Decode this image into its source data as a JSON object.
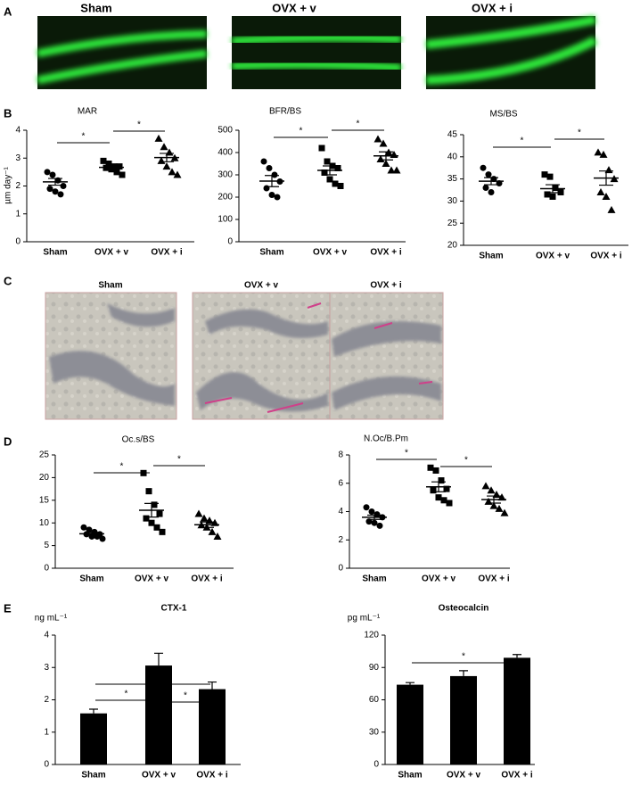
{
  "panel_labels": [
    "A",
    "B",
    "C",
    "D",
    "E"
  ],
  "fluorescence_images": {
    "labels": [
      "Sham",
      "OVX + v",
      "OVX + i"
    ]
  },
  "trap_images": {
    "labels": [
      "Sham",
      "OVX + v",
      "OVX + i"
    ]
  },
  "chart_data": [
    {
      "type": "dot",
      "title": "MAR",
      "ylabel": "µm day⁻¹",
      "categories": [
        "Sham",
        "OVX + v",
        "OVX + i"
      ],
      "markers": [
        "circle",
        "square",
        "triangle"
      ],
      "color": "#000000",
      "points": [
        [
          2.5,
          2.4,
          2.2,
          2.0,
          1.9,
          1.8,
          1.7
        ],
        [
          2.9,
          2.8,
          2.7,
          2.7,
          2.65,
          2.6,
          2.5,
          2.4
        ],
        [
          3.7,
          3.4,
          3.2,
          3.0,
          2.9,
          2.7,
          2.5,
          2.4
        ]
      ],
      "means": [
        2.15,
        2.67,
        3.02
      ],
      "errors": [
        0.12,
        0.06,
        0.15
      ],
      "ylim": [
        0,
        4
      ],
      "yticks": [
        0,
        1,
        2,
        3,
        4
      ],
      "significance": [
        {
          "label": "*",
          "between": [
            "Sham",
            "OVX + v"
          ]
        },
        {
          "label": "*",
          "between": [
            "OVX + v",
            "OVX + i"
          ]
        }
      ]
    },
    {
      "type": "dot",
      "title": "BFR/BS",
      "categories": [
        "Sham",
        "OVX + v",
        "OVX + i"
      ],
      "markers": [
        "circle",
        "square",
        "triangle"
      ],
      "color": "#000000",
      "points": [
        [
          360,
          330,
          300,
          270,
          240,
          210,
          200
        ],
        [
          420,
          360,
          340,
          330,
          310,
          280,
          260,
          250
        ],
        [
          460,
          440,
          400,
          390,
          370,
          350,
          320,
          320
        ]
      ],
      "means": [
        272,
        320,
        385
      ],
      "errors": [
        25,
        20,
        18
      ],
      "ylim": [
        0,
        500
      ],
      "yticks": [
        0,
        100,
        200,
        300,
        400,
        500
      ],
      "significance": [
        {
          "label": "*",
          "between": [
            "Sham",
            "OVX + v"
          ]
        },
        {
          "label": "*",
          "between": [
            "OVX + v",
            "OVX + i"
          ]
        }
      ]
    },
    {
      "type": "dot",
      "title": "MS/BS",
      "categories": [
        "Sham",
        "OVX + v",
        "OVX + i"
      ],
      "markers": [
        "circle",
        "square",
        "triangle"
      ],
      "color": "#000000",
      "points": [
        [
          37.5,
          36,
          35,
          34,
          33,
          32
        ],
        [
          36,
          35.5,
          33,
          32,
          31.5,
          31
        ],
        [
          41,
          40.5,
          37,
          35,
          32,
          31,
          28
        ]
      ],
      "means": [
        34.5,
        32.8,
        35.2
      ],
      "errors": [
        0.8,
        0.9,
        1.6
      ],
      "ylim": [
        20,
        45
      ],
      "yticks": [
        20,
        25,
        30,
        35,
        40,
        45
      ],
      "significance": [
        {
          "label": "*",
          "between": [
            "Sham",
            "OVX + v"
          ]
        },
        {
          "label": "*",
          "between": [
            "OVX + v",
            "OVX + i"
          ]
        }
      ]
    },
    {
      "type": "dot",
      "title": "Oc.s/BS",
      "categories": [
        "Sham",
        "OVX + v",
        "OVX + i"
      ],
      "markers": [
        "circle",
        "square",
        "triangle"
      ],
      "color": "#000000",
      "points": [
        [
          9,
          8.5,
          8,
          7.5,
          7.5,
          7,
          7,
          6.5
        ],
        [
          21,
          17,
          14,
          12,
          11,
          10,
          9,
          8
        ],
        [
          12,
          11,
          10.5,
          10,
          9.5,
          9,
          8,
          7
        ]
      ],
      "means": [
        7.6,
        12.8,
        9.6
      ],
      "errors": [
        0.3,
        1.5,
        0.6
      ],
      "ylim": [
        0,
        25
      ],
      "yticks": [
        0,
        5,
        10,
        15,
        20,
        25
      ],
      "significance": [
        {
          "label": "*",
          "between": [
            "Sham",
            "OVX + v"
          ]
        },
        {
          "label": "*",
          "between": [
            "OVX + v",
            "OVX + i"
          ]
        }
      ]
    },
    {
      "type": "dot",
      "title": "N.Oc/B.Pm",
      "categories": [
        "Sham",
        "OVX + v",
        "OVX + i"
      ],
      "markers": [
        "circle",
        "square",
        "triangle"
      ],
      "color": "#000000",
      "points": [
        [
          4.3,
          4.0,
          3.8,
          3.6,
          3.3,
          3.2,
          3.0
        ],
        [
          7.1,
          6.9,
          6.2,
          5.6,
          5.5,
          5.0,
          4.8,
          4.6
        ],
        [
          5.8,
          5.5,
          5.2,
          5.0,
          4.7,
          4.4,
          4.2,
          3.9
        ]
      ],
      "means": [
        3.6,
        5.75,
        4.85
      ],
      "errors": [
        0.15,
        0.35,
        0.25
      ],
      "ylim": [
        0,
        8
      ],
      "yticks": [
        0,
        2,
        4,
        6,
        8
      ],
      "significance": [
        {
          "label": "*",
          "between": [
            "Sham",
            "OVX + v"
          ]
        },
        {
          "label": "*",
          "between": [
            "OVX + v",
            "OVX + i"
          ]
        }
      ]
    },
    {
      "type": "bar",
      "title": "CTX-1",
      "ylabel": "ng mL⁻¹",
      "categories": [
        "Sham",
        "OVX + v",
        "OVX + i"
      ],
      "color": "#000000",
      "values": [
        1.58,
        3.06,
        2.33
      ],
      "errors": [
        0.13,
        0.38,
        0.22
      ],
      "ylim": [
        0,
        4
      ],
      "yticks": [
        0,
        1,
        2,
        3,
        4
      ],
      "significance": [
        {
          "label": "*",
          "between": [
            "Sham",
            "OVX + v"
          ]
        },
        {
          "label": "*",
          "between": [
            "OVX + v",
            "OVX + i"
          ]
        },
        {
          "label": "*",
          "between": [
            "Sham",
            "OVX + i"
          ]
        }
      ]
    },
    {
      "type": "bar",
      "title": "Osteocalcin",
      "ylabel": "pg mL⁻¹",
      "categories": [
        "Sham",
        "OVX + v",
        "OVX + i"
      ],
      "color": "#000000",
      "values": [
        74,
        82,
        99
      ],
      "errors": [
        2,
        5,
        3
      ],
      "ylim": [
        0,
        120
      ],
      "yticks": [
        0,
        30,
        60,
        90,
        120
      ],
      "significance": [
        {
          "label": "*",
          "between": [
            "Sham",
            "OVX + i"
          ]
        }
      ]
    }
  ]
}
